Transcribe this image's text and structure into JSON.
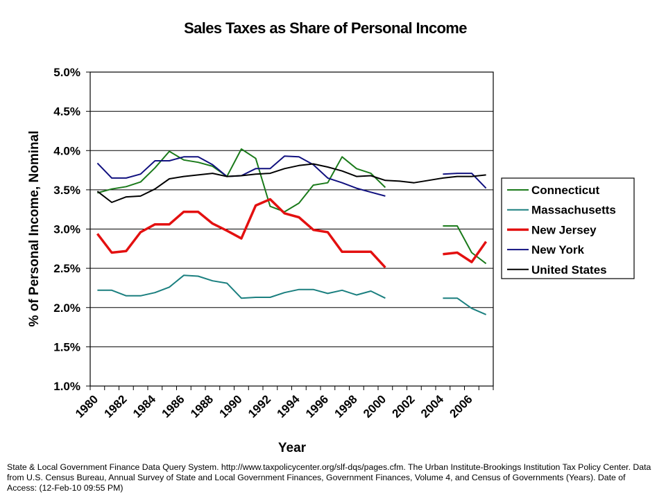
{
  "chart_data": {
    "type": "line",
    "title": "Sales Taxes as Share of Personal Income",
    "xlabel": "Year",
    "ylabel": "% of Personal Income, Nominal",
    "ylim": [
      1.0,
      5.0
    ],
    "y_ticks": [
      "1.0%",
      "1.5%",
      "2.0%",
      "2.5%",
      "3.0%",
      "3.5%",
      "4.0%",
      "4.5%",
      "5.0%"
    ],
    "y_tick_values": [
      1.0,
      1.5,
      2.0,
      2.5,
      3.0,
      3.5,
      4.0,
      4.5,
      5.0
    ],
    "grid": true,
    "legend_position": "right",
    "x": [
      1980,
      1981,
      1982,
      1983,
      1984,
      1985,
      1986,
      1987,
      1988,
      1989,
      1990,
      1991,
      1992,
      1993,
      1994,
      1995,
      1996,
      1997,
      1998,
      1999,
      2000,
      2001,
      2002,
      2003,
      2004,
      2005,
      2006,
      2007
    ],
    "x_tick_labels": [
      "1980",
      "1982",
      "1984",
      "1986",
      "1988",
      "1990",
      "1992",
      "1994",
      "1996",
      "1998",
      "2000",
      "2002",
      "2004",
      "2006"
    ],
    "series": [
      {
        "name": "Connecticut",
        "color": "#1a7a1a",
        "width": 2,
        "values": [
          3.46,
          3.51,
          3.54,
          3.6,
          3.78,
          3.99,
          3.88,
          3.85,
          3.8,
          3.67,
          4.02,
          3.9,
          3.29,
          3.22,
          3.33,
          3.56,
          3.59,
          3.92,
          3.77,
          3.71,
          3.53,
          null,
          null,
          null,
          3.04,
          3.04,
          2.7,
          2.56
        ]
      },
      {
        "name": "Massachusetts",
        "color": "#1a7f7f",
        "width": 2,
        "values": [
          2.22,
          2.22,
          2.15,
          2.15,
          2.19,
          2.26,
          2.41,
          2.4,
          2.34,
          2.31,
          2.12,
          2.13,
          2.13,
          2.19,
          2.23,
          2.23,
          2.18,
          2.22,
          2.16,
          2.21,
          2.12,
          null,
          null,
          null,
          2.12,
          2.12,
          1.99,
          1.91
        ]
      },
      {
        "name": "New Jersey",
        "color": "#e31010",
        "width": 3.5,
        "values": [
          2.94,
          2.7,
          2.72,
          2.96,
          3.06,
          3.06,
          3.22,
          3.22,
          3.07,
          2.98,
          2.88,
          3.3,
          3.38,
          3.2,
          3.15,
          2.99,
          2.96,
          2.71,
          2.71,
          2.71,
          2.51,
          null,
          null,
          null,
          2.68,
          2.7,
          2.58,
          2.84
        ]
      },
      {
        "name": "New York",
        "color": "#10107f",
        "width": 2,
        "values": [
          3.84,
          3.65,
          3.65,
          3.7,
          3.87,
          3.87,
          3.92,
          3.92,
          3.82,
          3.67,
          3.68,
          3.77,
          3.77,
          3.93,
          3.92,
          3.82,
          3.65,
          3.59,
          3.52,
          3.47,
          3.42,
          null,
          null,
          null,
          3.7,
          3.71,
          3.71,
          3.52
        ]
      },
      {
        "name": "United States",
        "color": "#000000",
        "width": 2,
        "values": [
          3.48,
          3.34,
          3.41,
          3.42,
          3.51,
          3.64,
          3.67,
          3.69,
          3.71,
          3.67,
          3.68,
          3.7,
          3.71,
          3.77,
          3.81,
          3.83,
          3.79,
          3.74,
          3.67,
          3.68,
          3.62,
          3.61,
          3.59,
          3.62,
          3.65,
          3.67,
          3.67,
          3.69
        ]
      }
    ]
  },
  "footnote": "State & Local Government Finance Data Query System. http://www.taxpolicycenter.org/slf-dqs/pages.cfm. The Urban Institute-Brookings Institution Tax Policy Center. Data from U.S. Census Bureau, Annual Survey of State and Local Government Finances, Government Finances, Volume 4, and Census of Governments (Years). Date of Access: (12-Feb-10 09:55 PM)"
}
